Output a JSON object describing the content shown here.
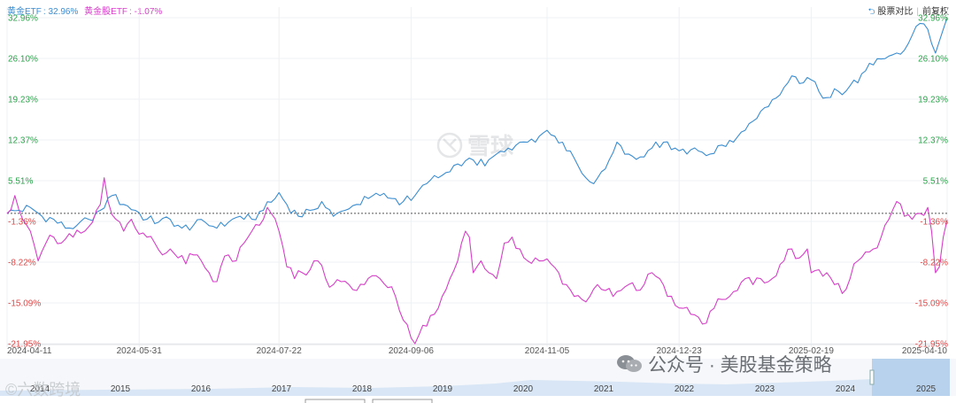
{
  "header": {
    "legend": [
      {
        "name": "黄金ETF",
        "value_text": "32.96%",
        "color": "#3a8dd1"
      },
      {
        "name": "黄金股ETF",
        "value_text": "-1.07%",
        "color": "#d63fc8"
      }
    ],
    "compare_label": "股票对比",
    "adjust_label": "前复权"
  },
  "watermarks": {
    "center": "雪球",
    "left": "©六数跨境",
    "right": "公众号 · 美股基金策略"
  },
  "navigator": {
    "years": [
      "2014",
      "2015",
      "2016",
      "2017",
      "2018",
      "2019",
      "2020",
      "2021",
      "2022",
      "2023",
      "2024",
      "2025"
    ]
  },
  "chart_data": {
    "type": "line",
    "title": "",
    "xlabel": "",
    "ylabel": "",
    "y_unit": "%",
    "ylim": [
      -21.95,
      32.96
    ],
    "y_ticks": [
      {
        "value": 32.96,
        "label": "32.96%"
      },
      {
        "value": 26.1,
        "label": "26.10%"
      },
      {
        "value": 19.23,
        "label": "19.23%"
      },
      {
        "value": 12.37,
        "label": "12.37%"
      },
      {
        "value": 5.51,
        "label": "5.51%"
      },
      {
        "value": -1.36,
        "label": "-1.36%"
      },
      {
        "value": -8.22,
        "label": "-8.22%"
      },
      {
        "value": -15.09,
        "label": "-15.09%"
      },
      {
        "value": -21.95,
        "label": "-21.95%"
      }
    ],
    "x_ticks": [
      {
        "index": 0,
        "label": "2024-04-11"
      },
      {
        "index": 34,
        "label": "2024-05-31"
      },
      {
        "index": 70,
        "label": "2024-07-22"
      },
      {
        "index": 104,
        "label": "2024-09-06"
      },
      {
        "index": 139,
        "label": "2024-11-05"
      },
      {
        "index": 173,
        "label": "2024-12-23"
      },
      {
        "index": 207,
        "label": "2025-02-19"
      },
      {
        "index": 242,
        "label": "2025-04-10"
      }
    ],
    "reference_line": 0,
    "series": [
      {
        "name": "黄金ETF",
        "color": "#3a8dd1",
        "keyframes": [
          [
            0,
            0
          ],
          [
            3,
            0.5
          ],
          [
            6,
            1
          ],
          [
            9,
            -0.5
          ],
          [
            12,
            -1
          ],
          [
            15,
            -2.5
          ],
          [
            18,
            -2
          ],
          [
            21,
            -1
          ],
          [
            24,
            0.5
          ],
          [
            27,
            3
          ],
          [
            30,
            1.5
          ],
          [
            33,
            0.5
          ],
          [
            36,
            -1
          ],
          [
            39,
            -1.5
          ],
          [
            42,
            -1
          ],
          [
            45,
            -2.5
          ],
          [
            48,
            -2
          ],
          [
            51,
            -1.5
          ],
          [
            54,
            -2.5
          ],
          [
            57,
            -1.5
          ],
          [
            60,
            -0.5
          ],
          [
            63,
            -1
          ],
          [
            66,
            0.5
          ],
          [
            69,
            2.5
          ],
          [
            70,
            3.5
          ],
          [
            72,
            1.5
          ],
          [
            75,
            -0.5
          ],
          [
            78,
            0.5
          ],
          [
            81,
            2
          ],
          [
            84,
            -0.5
          ],
          [
            87,
            0.5
          ],
          [
            90,
            1.5
          ],
          [
            93,
            2.5
          ],
          [
            96,
            3
          ],
          [
            99,
            2.5
          ],
          [
            102,
            2
          ],
          [
            105,
            3
          ],
          [
            108,
            5
          ],
          [
            111,
            6
          ],
          [
            114,
            7
          ],
          [
            117,
            8
          ],
          [
            120,
            9
          ],
          [
            123,
            8
          ],
          [
            126,
            10
          ],
          [
            129,
            11
          ],
          [
            132,
            12
          ],
          [
            135,
            12.5
          ],
          [
            137,
            13
          ],
          [
            139,
            14
          ],
          [
            141,
            13
          ],
          [
            143,
            12
          ],
          [
            145,
            10.5
          ],
          [
            147,
            8
          ],
          [
            149,
            6
          ],
          [
            151,
            5
          ],
          [
            153,
            7
          ],
          [
            155,
            9
          ],
          [
            157,
            12
          ],
          [
            160,
            10
          ],
          [
            163,
            9.5
          ],
          [
            166,
            11
          ],
          [
            169,
            12
          ],
          [
            172,
            11
          ],
          [
            175,
            10
          ],
          [
            178,
            10.5
          ],
          [
            181,
            10
          ],
          [
            184,
            11.5
          ],
          [
            187,
            12
          ],
          [
            190,
            14
          ],
          [
            193,
            16
          ],
          [
            196,
            18
          ],
          [
            199,
            20
          ],
          [
            201,
            22
          ],
          [
            203,
            23
          ],
          [
            205,
            22
          ],
          [
            207,
            22.5
          ],
          [
            209,
            20.5
          ],
          [
            211,
            19.5
          ],
          [
            213,
            21
          ],
          [
            215,
            20
          ],
          [
            217,
            21.5
          ],
          [
            219,
            22
          ],
          [
            221,
            24
          ],
          [
            223,
            25
          ],
          [
            225,
            26
          ],
          [
            227,
            26.5
          ],
          [
            229,
            27
          ],
          [
            231,
            27.5
          ],
          [
            233,
            30
          ],
          [
            235,
            32
          ],
          [
            237,
            31
          ],
          [
            239,
            27
          ],
          [
            240,
            29
          ],
          [
            241,
            31
          ],
          [
            242,
            32.96
          ]
        ]
      },
      {
        "name": "黄金股ETF",
        "color": "#d63fc8",
        "keyframes": [
          [
            0,
            0
          ],
          [
            2,
            3
          ],
          [
            4,
            -1
          ],
          [
            6,
            -3
          ],
          [
            8,
            -8
          ],
          [
            10,
            -5
          ],
          [
            12,
            -4
          ],
          [
            14,
            -5
          ],
          [
            17,
            -4
          ],
          [
            20,
            -3
          ],
          [
            22,
            -1.5
          ],
          [
            23,
            0.5
          ],
          [
            24,
            1.5
          ],
          [
            25,
            6
          ],
          [
            26,
            2
          ],
          [
            28,
            -1
          ],
          [
            30,
            -3
          ],
          [
            32,
            -1
          ],
          [
            34,
            -3.5
          ],
          [
            36,
            -4
          ],
          [
            38,
            -5
          ],
          [
            40,
            -7
          ],
          [
            42,
            -6
          ],
          [
            44,
            -7.5
          ],
          [
            46,
            -8.5
          ],
          [
            48,
            -7
          ],
          [
            50,
            -8
          ],
          [
            52,
            -10
          ],
          [
            54,
            -11.5
          ],
          [
            55,
            -9
          ],
          [
            57,
            -7
          ],
          [
            59,
            -8
          ],
          [
            61,
            -5
          ],
          [
            63,
            -3
          ],
          [
            65,
            -2
          ],
          [
            66,
            -1
          ],
          [
            67,
            1
          ],
          [
            68,
            0
          ],
          [
            70,
            -3
          ],
          [
            72,
            -9
          ],
          [
            74,
            -11
          ],
          [
            76,
            -10
          ],
          [
            78,
            -9.5
          ],
          [
            80,
            -8
          ],
          [
            82,
            -11
          ],
          [
            84,
            -12
          ],
          [
            86,
            -11.5
          ],
          [
            88,
            -12
          ],
          [
            90,
            -13
          ],
          [
            92,
            -12
          ],
          [
            94,
            -10.5
          ],
          [
            96,
            -11
          ],
          [
            98,
            -12.5
          ],
          [
            100,
            -14
          ],
          [
            102,
            -18
          ],
          [
            104,
            -21
          ],
          [
            105,
            -21.95
          ],
          [
            106,
            -20.5
          ],
          [
            108,
            -19
          ],
          [
            110,
            -17
          ],
          [
            112,
            -14
          ],
          [
            114,
            -11
          ],
          [
            116,
            -8
          ],
          [
            117,
            -5
          ],
          [
            118,
            -3
          ],
          [
            119,
            -4
          ],
          [
            120,
            -10
          ],
          [
            122,
            -8
          ],
          [
            124,
            -10
          ],
          [
            126,
            -11
          ],
          [
            128,
            -5
          ],
          [
            130,
            -4
          ],
          [
            132,
            -6
          ],
          [
            134,
            -8
          ],
          [
            136,
            -7.5
          ],
          [
            138,
            -8
          ],
          [
            140,
            -8.5
          ],
          [
            142,
            -10
          ],
          [
            144,
            -12
          ],
          [
            146,
            -14
          ],
          [
            148,
            -14.5
          ],
          [
            150,
            -14
          ],
          [
            152,
            -12
          ],
          [
            154,
            -13
          ],
          [
            156,
            -14
          ],
          [
            158,
            -13
          ],
          [
            160,
            -12
          ],
          [
            162,
            -13
          ],
          [
            164,
            -12
          ],
          [
            166,
            -10
          ],
          [
            168,
            -11
          ],
          [
            170,
            -14
          ],
          [
            172,
            -15.5
          ],
          [
            174,
            -16
          ],
          [
            176,
            -17
          ],
          [
            178,
            -17.5
          ],
          [
            180,
            -18.5
          ],
          [
            182,
            -16
          ],
          [
            184,
            -14.5
          ],
          [
            186,
            -14
          ],
          [
            188,
            -13
          ],
          [
            190,
            -11
          ],
          [
            192,
            -12
          ],
          [
            194,
            -11
          ],
          [
            196,
            -11.5
          ],
          [
            198,
            -10.5
          ],
          [
            200,
            -8
          ],
          [
            202,
            -6
          ],
          [
            204,
            -7.5
          ],
          [
            206,
            -6
          ],
          [
            207,
            -10
          ],
          [
            209,
            -9.5
          ],
          [
            211,
            -10
          ],
          [
            213,
            -12
          ],
          [
            215,
            -13.5
          ],
          [
            217,
            -11
          ],
          [
            219,
            -8
          ],
          [
            221,
            -6.5
          ],
          [
            223,
            -6
          ],
          [
            225,
            -4
          ],
          [
            227,
            -1
          ],
          [
            229,
            2
          ],
          [
            231,
            -0.5
          ],
          [
            233,
            -1
          ],
          [
            235,
            0
          ],
          [
            237,
            1
          ],
          [
            238,
            -3
          ],
          [
            239,
            -10
          ],
          [
            240,
            -9
          ],
          [
            241,
            -4
          ],
          [
            242,
            -1.07
          ]
        ]
      }
    ]
  }
}
